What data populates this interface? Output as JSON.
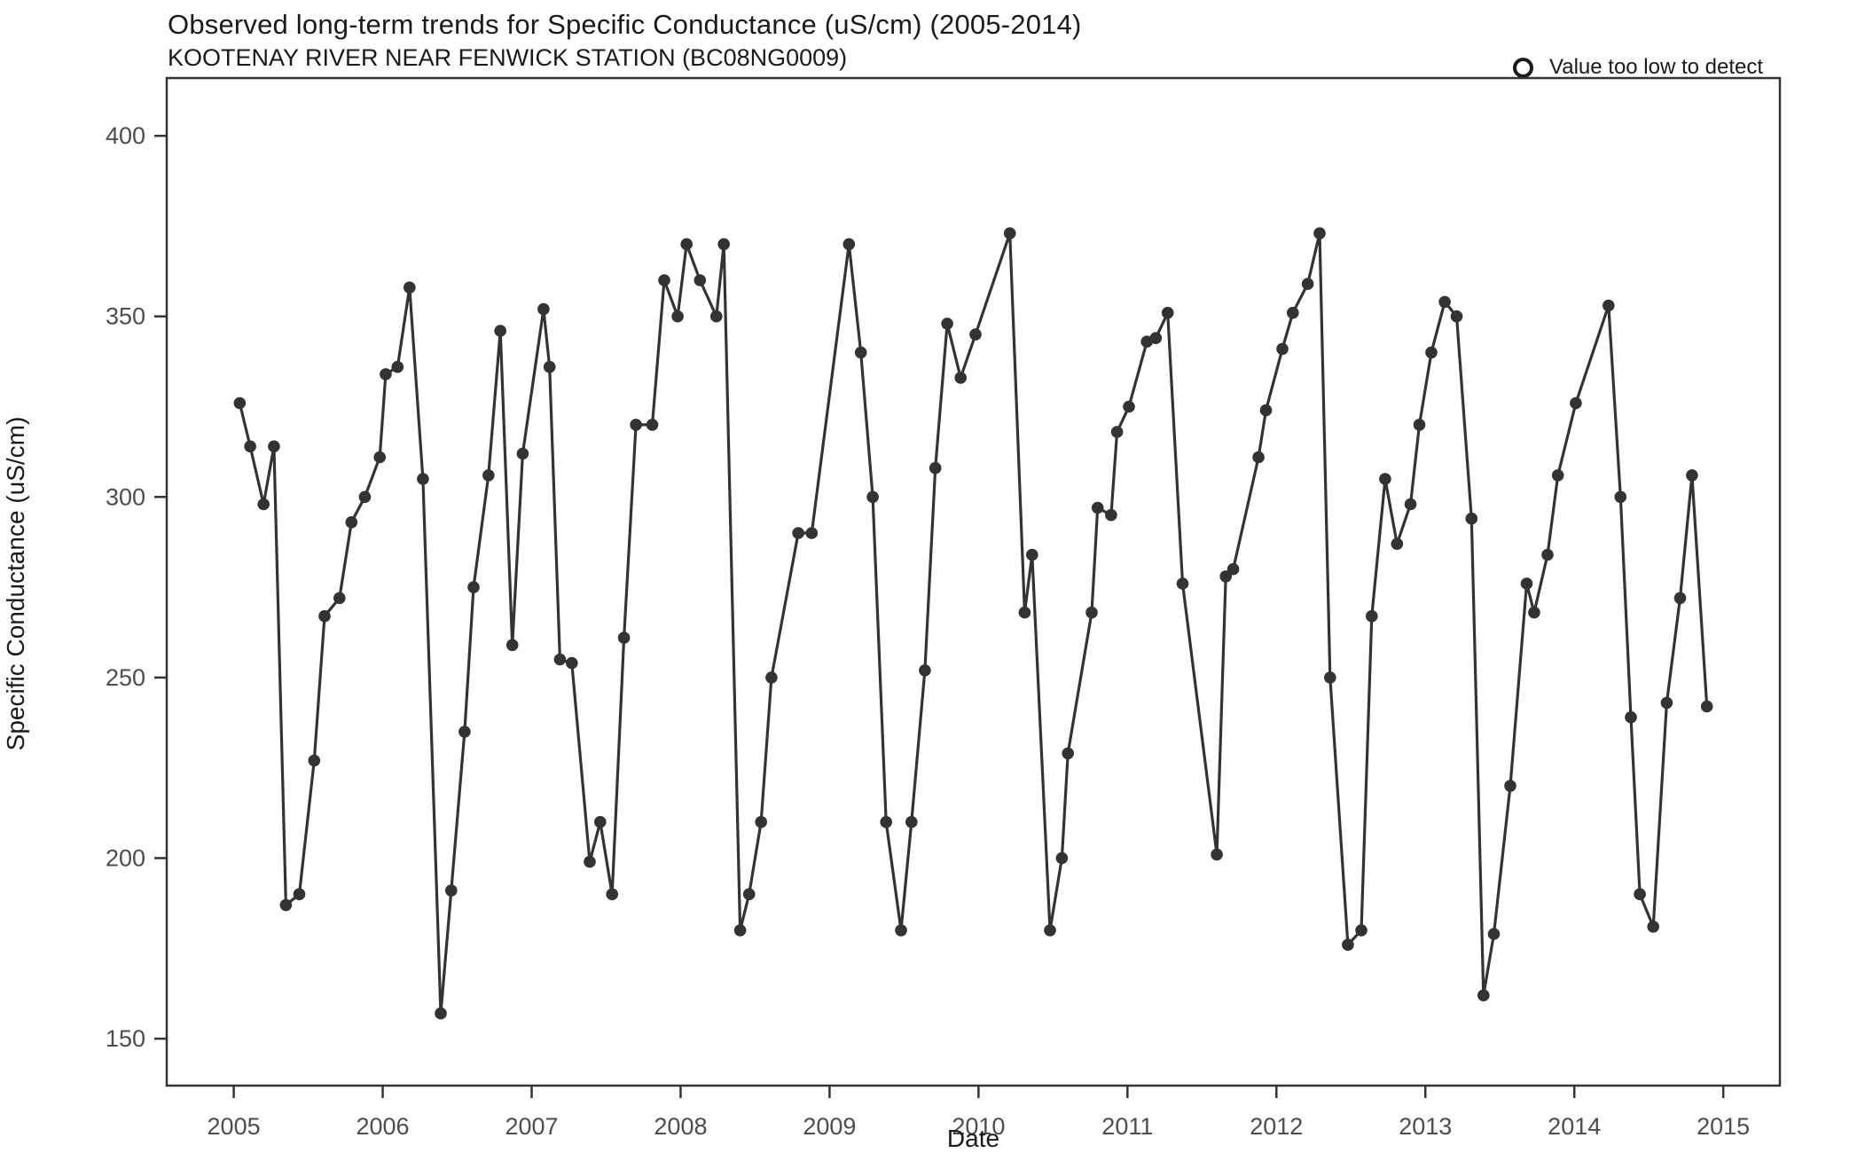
{
  "header": {
    "title": "Observed long-term trends for Specific Conductance (uS/cm) (2005-2014)",
    "subtitle": "KOOTENAY RIVER NEAR FENWICK STATION (BC08NG0009)"
  },
  "legend": {
    "symbol": "open-circle",
    "label": "Value too low to detect",
    "position": "top-right"
  },
  "chart_data": {
    "type": "line",
    "title": "Observed long-term trends for Specific Conductance (uS/cm) (2005-2014)",
    "subtitle": "KOOTENAY RIVER NEAR FENWICK STATION (BC08NG0009)",
    "xlabel": "Date",
    "ylabel": "Specific Conductance (uS/cm)",
    "x_ticks": [
      2005,
      2006,
      2007,
      2008,
      2009,
      2010,
      2011,
      2012,
      2013,
      2014,
      2015
    ],
    "y_ticks": [
      150,
      200,
      250,
      300,
      350,
      400
    ],
    "xlim": [
      2004.55,
      2015.38
    ],
    "ylim": [
      137,
      416
    ],
    "grid": false,
    "legend_entries": [
      "Value too low to detect"
    ],
    "marker": "filled-circle",
    "line_color": "#333333",
    "point_color": "#333333",
    "series": [
      {
        "name": "Specific Conductance (uS/cm)",
        "points": [
          [
            2005.04,
            326
          ],
          [
            2005.11,
            314
          ],
          [
            2005.2,
            298
          ],
          [
            2005.27,
            314
          ],
          [
            2005.35,
            187
          ],
          [
            2005.44,
            190
          ],
          [
            2005.54,
            227
          ],
          [
            2005.61,
            267
          ],
          [
            2005.71,
            272
          ],
          [
            2005.79,
            293
          ],
          [
            2005.88,
            300
          ],
          [
            2005.98,
            311
          ],
          [
            2006.02,
            334
          ],
          [
            2006.1,
            336
          ],
          [
            2006.18,
            358
          ],
          [
            2006.27,
            305
          ],
          [
            2006.39,
            157
          ],
          [
            2006.46,
            191
          ],
          [
            2006.55,
            235
          ],
          [
            2006.61,
            275
          ],
          [
            2006.71,
            306
          ],
          [
            2006.79,
            346
          ],
          [
            2006.87,
            259
          ],
          [
            2006.94,
            312
          ],
          [
            2007.08,
            352
          ],
          [
            2007.12,
            336
          ],
          [
            2007.19,
            255
          ],
          [
            2007.27,
            254
          ],
          [
            2007.39,
            199
          ],
          [
            2007.46,
            210
          ],
          [
            2007.54,
            190
          ],
          [
            2007.62,
            261
          ],
          [
            2007.7,
            320
          ],
          [
            2007.81,
            320
          ],
          [
            2007.89,
            360
          ],
          [
            2007.98,
            350
          ],
          [
            2008.04,
            370
          ],
          [
            2008.13,
            360
          ],
          [
            2008.24,
            350
          ],
          [
            2008.29,
            370
          ],
          [
            2008.4,
            180
          ],
          [
            2008.46,
            190
          ],
          [
            2008.54,
            210
          ],
          [
            2008.61,
            250
          ],
          [
            2008.79,
            290
          ],
          [
            2008.88,
            290
          ],
          [
            2009.13,
            370
          ],
          [
            2009.21,
            340
          ],
          [
            2009.29,
            300
          ],
          [
            2009.38,
            210
          ],
          [
            2009.48,
            180
          ],
          [
            2009.55,
            210
          ],
          [
            2009.64,
            252
          ],
          [
            2009.71,
            308
          ],
          [
            2009.79,
            348
          ],
          [
            2009.88,
            333
          ],
          [
            2009.98,
            345
          ],
          [
            2010.21,
            373
          ],
          [
            2010.31,
            268
          ],
          [
            2010.36,
            284
          ],
          [
            2010.48,
            180
          ],
          [
            2010.56,
            200
          ],
          [
            2010.6,
            229
          ],
          [
            2010.76,
            268
          ],
          [
            2010.8,
            297
          ],
          [
            2010.89,
            295
          ],
          [
            2010.93,
            318
          ],
          [
            2011.01,
            325
          ],
          [
            2011.13,
            343
          ],
          [
            2011.19,
            344
          ],
          [
            2011.27,
            351
          ],
          [
            2011.37,
            276
          ],
          [
            2011.6,
            201
          ],
          [
            2011.66,
            278
          ],
          [
            2011.71,
            280
          ],
          [
            2011.88,
            311
          ],
          [
            2011.93,
            324
          ],
          [
            2012.04,
            341
          ],
          [
            2012.11,
            351
          ],
          [
            2012.21,
            359
          ],
          [
            2012.29,
            373
          ],
          [
            2012.36,
            250
          ],
          [
            2012.48,
            176
          ],
          [
            2012.57,
            180
          ],
          [
            2012.64,
            267
          ],
          [
            2012.73,
            305
          ],
          [
            2012.81,
            287
          ],
          [
            2012.9,
            298
          ],
          [
            2012.96,
            320
          ],
          [
            2013.04,
            340
          ],
          [
            2013.13,
            354
          ],
          [
            2013.21,
            350
          ],
          [
            2013.31,
            294
          ],
          [
            2013.39,
            162
          ],
          [
            2013.46,
            179
          ],
          [
            2013.57,
            220
          ],
          [
            2013.68,
            276
          ],
          [
            2013.73,
            268
          ],
          [
            2013.82,
            284
          ],
          [
            2013.89,
            306
          ],
          [
            2014.01,
            326
          ],
          [
            2014.23,
            353
          ],
          [
            2014.31,
            300
          ],
          [
            2014.38,
            239
          ],
          [
            2014.44,
            190
          ],
          [
            2014.53,
            181
          ],
          [
            2014.62,
            243
          ],
          [
            2014.71,
            272
          ],
          [
            2014.79,
            306
          ],
          [
            2014.89,
            242
          ]
        ]
      }
    ]
  }
}
